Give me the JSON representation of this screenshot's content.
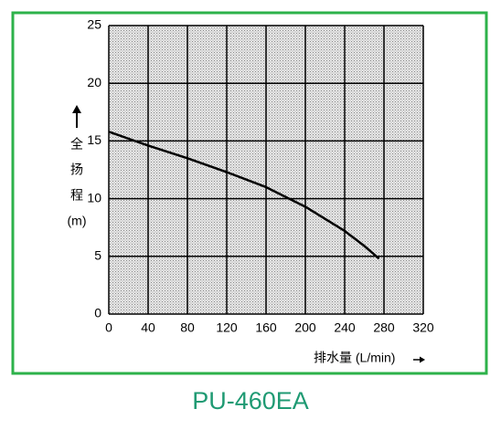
{
  "chart_data": {
    "type": "line",
    "title": "PU-460EA",
    "xlabel": "排水量 (L/min)",
    "ylabel_lines": [
      "全",
      "扬",
      "程",
      "(m)"
    ],
    "x": [
      0,
      20,
      40,
      80,
      120,
      160,
      200,
      240,
      260,
      275
    ],
    "series": [
      {
        "color": "#000000",
        "values": [
          15.8,
          15.2,
          14.6,
          13.5,
          12.3,
          11.0,
          9.3,
          7.2,
          5.9,
          4.8
        ]
      }
    ],
    "xlim": [
      0,
      320
    ],
    "ylim": [
      0,
      25
    ],
    "xticks": [
      0,
      40,
      80,
      120,
      160,
      200,
      240,
      280,
      320
    ],
    "yticks": [
      0,
      5,
      10,
      15,
      20,
      25
    ],
    "grid": true,
    "frame_color": "#2db24a",
    "title_color": "#1f9a73"
  }
}
